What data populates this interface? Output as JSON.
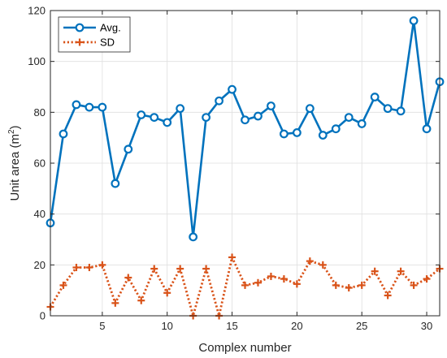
{
  "colors": {
    "avg": "#0072BD",
    "sd": "#D95319",
    "axis": "#262626",
    "grid": "#dfdfdf"
  },
  "chart_data": {
    "type": "line",
    "xlabel": "Complex number",
    "ylabel_main": "Unit area (m",
    "ylabel_sup": "2",
    "ylabel_close": ")",
    "xlim": [
      1,
      31
    ],
    "ylim": [
      0,
      120
    ],
    "xticks": [
      5,
      10,
      15,
      20,
      25,
      30
    ],
    "yticks": [
      0,
      20,
      40,
      60,
      80,
      100,
      120
    ],
    "grid": true,
    "legend": "top-left",
    "x": [
      1,
      2,
      3,
      4,
      5,
      6,
      7,
      8,
      9,
      10,
      11,
      12,
      13,
      14,
      15,
      16,
      17,
      18,
      19,
      20,
      21,
      22,
      23,
      24,
      25,
      26,
      27,
      28,
      29,
      30,
      31
    ],
    "series": [
      {
        "name": "Avg.",
        "marker": "circle",
        "line": "solid",
        "values": [
          36.5,
          71.5,
          83,
          82,
          82,
          52,
          65.5,
          79,
          78,
          76,
          81.5,
          31,
          78,
          84.5,
          89,
          77,
          78.5,
          82.5,
          71.5,
          72,
          81.5,
          71,
          73.5,
          78,
          75.5,
          86,
          81.5,
          80.5,
          116,
          73.5,
          92
        ]
      },
      {
        "name": "SD",
        "marker": "plus",
        "line": "dotted",
        "values": [
          3.5,
          12,
          19,
          19,
          20,
          5,
          15,
          6,
          18.5,
          9,
          18.5,
          0,
          18.5,
          0,
          23,
          12,
          13,
          15.5,
          14.5,
          12.5,
          21.5,
          20,
          12,
          11,
          12,
          17.5,
          8,
          17.5,
          12,
          14.5,
          18.5
        ]
      }
    ]
  }
}
